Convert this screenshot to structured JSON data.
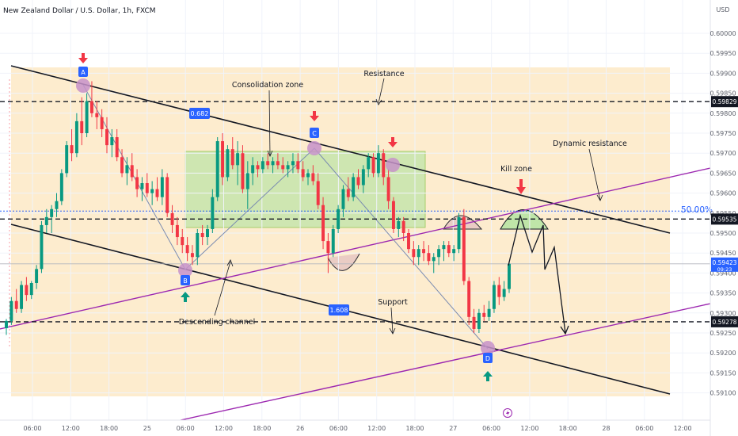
{
  "header": {
    "title": "New Zealand Dollar / U.S. Dollar, 1h, FXCM",
    "currency": "USD"
  },
  "chart_data": {
    "type": "candlestick",
    "ylim": [
      0.591,
      0.6007
    ],
    "y_ticks": [
      "0.60000",
      "0.59950",
      "0.59900",
      "0.59850",
      "0.59800",
      "0.59750",
      "0.59700",
      "0.59650",
      "0.59600",
      "0.59550",
      "0.59500",
      "0.59450",
      "0.59400",
      "0.59350",
      "0.59300",
      "0.59250",
      "0.59200",
      "0.59150",
      "0.59100"
    ],
    "x_ticks": [
      "06:00",
      "12:00",
      "18:00",
      "25",
      "06:00",
      "12:00",
      "18:00",
      "26",
      "06:00",
      "12:00",
      "18:00",
      "27",
      "06:00",
      "12:00",
      "18:00",
      "28",
      "06:00",
      "12:00"
    ],
    "candles": [
      [
        0.59262,
        0.59285,
        0.59245,
        0.5928
      ],
      [
        0.5928,
        0.5934,
        0.5927,
        0.5933
      ],
      [
        0.5933,
        0.5936,
        0.593,
        0.5931
      ],
      [
        0.5931,
        0.5938,
        0.593,
        0.5937
      ],
      [
        0.5937,
        0.5939,
        0.5933,
        0.59345
      ],
      [
        0.59345,
        0.5938,
        0.59335,
        0.59375
      ],
      [
        0.59375,
        0.5942,
        0.5936,
        0.5941
      ],
      [
        0.5941,
        0.5953,
        0.594,
        0.5952
      ],
      [
        0.5952,
        0.5956,
        0.595,
        0.5954
      ],
      [
        0.5954,
        0.5957,
        0.595,
        0.5956
      ],
      [
        0.5956,
        0.596,
        0.5954,
        0.5958
      ],
      [
        0.5958,
        0.5966,
        0.5957,
        0.5965
      ],
      [
        0.5965,
        0.5973,
        0.5964,
        0.5972
      ],
      [
        0.5972,
        0.5976,
        0.5968,
        0.597
      ],
      [
        0.597,
        0.598,
        0.5969,
        0.5978
      ],
      [
        0.5978,
        0.5984,
        0.5972,
        0.5975
      ],
      [
        0.5975,
        0.5985,
        0.5974,
        0.5983
      ],
      [
        0.5983,
        0.5988,
        0.5979,
        0.598
      ],
      [
        0.598,
        0.5983,
        0.5976,
        0.5979
      ],
      [
        0.5979,
        0.5981,
        0.5974,
        0.5976
      ],
      [
        0.5976,
        0.5979,
        0.597,
        0.5972
      ],
      [
        0.5972,
        0.5976,
        0.5969,
        0.5974
      ],
      [
        0.5974,
        0.5976,
        0.5968,
        0.5969
      ],
      [
        0.5969,
        0.5971,
        0.5964,
        0.5965
      ],
      [
        0.5965,
        0.5969,
        0.5962,
        0.5967
      ],
      [
        0.5967,
        0.597,
        0.5963,
        0.5964
      ],
      [
        0.5964,
        0.5966,
        0.5959,
        0.5961
      ],
      [
        0.5961,
        0.5964,
        0.5958,
        0.59625
      ],
      [
        0.59625,
        0.5965,
        0.5959,
        0.596
      ],
      [
        0.596,
        0.5963,
        0.5957,
        0.5961
      ],
      [
        0.5961,
        0.5964,
        0.5958,
        0.5959
      ],
      [
        0.5959,
        0.5966,
        0.5957,
        0.5964
      ],
      [
        0.5964,
        0.5965,
        0.5954,
        0.5955
      ],
      [
        0.5955,
        0.5957,
        0.595,
        0.5952
      ],
      [
        0.5952,
        0.5954,
        0.5947,
        0.5949
      ],
      [
        0.5949,
        0.5951,
        0.5945,
        0.5947
      ],
      [
        0.5947,
        0.5949,
        0.5943,
        0.5945
      ],
      [
        0.5945,
        0.5947,
        0.5942,
        0.5944
      ],
      [
        0.5944,
        0.5951,
        0.5942,
        0.595
      ],
      [
        0.595,
        0.5952,
        0.5947,
        0.5949
      ],
      [
        0.5949,
        0.5952,
        0.5947,
        0.5951
      ],
      [
        0.5951,
        0.5961,
        0.595,
        0.5959
      ],
      [
        0.5959,
        0.5974,
        0.5958,
        0.5973
      ],
      [
        0.5973,
        0.5975,
        0.5962,
        0.5964
      ],
      [
        0.5964,
        0.5972,
        0.5963,
        0.5971
      ],
      [
        0.5971,
        0.5974,
        0.5966,
        0.5967
      ],
      [
        0.5967,
        0.5973,
        0.5962,
        0.597
      ],
      [
        0.597,
        0.5972,
        0.596,
        0.5961
      ],
      [
        0.5961,
        0.5968,
        0.5956,
        0.5965
      ],
      [
        0.5965,
        0.5969,
        0.5962,
        0.5967
      ],
      [
        0.5967,
        0.5968,
        0.5964,
        0.5966
      ],
      [
        0.5966,
        0.5969,
        0.5965,
        0.5968
      ],
      [
        0.5968,
        0.597,
        0.5966,
        0.5967
      ],
      [
        0.5967,
        0.5969,
        0.5965,
        0.5968
      ],
      [
        0.5968,
        0.597,
        0.5966,
        0.5967
      ],
      [
        0.5967,
        0.5969,
        0.5965,
        0.5966
      ],
      [
        0.5966,
        0.5968,
        0.5964,
        0.5967
      ],
      [
        0.5967,
        0.597,
        0.5965,
        0.5968
      ],
      [
        0.5968,
        0.597,
        0.5965,
        0.5966
      ],
      [
        0.5966,
        0.5968,
        0.5963,
        0.5964
      ],
      [
        0.5964,
        0.5966,
        0.5962,
        0.5965
      ],
      [
        0.5965,
        0.5967,
        0.5962,
        0.5963
      ],
      [
        0.5963,
        0.5965,
        0.5956,
        0.5957
      ],
      [
        0.5957,
        0.5959,
        0.5946,
        0.5948
      ],
      [
        0.5948,
        0.595,
        0.594,
        0.5945
      ],
      [
        0.5945,
        0.5952,
        0.5944,
        0.5951
      ],
      [
        0.5951,
        0.5957,
        0.595,
        0.5956
      ],
      [
        0.5956,
        0.5962,
        0.5954,
        0.5961
      ],
      [
        0.5961,
        0.5964,
        0.5958,
        0.5959
      ],
      [
        0.5959,
        0.5965,
        0.5958,
        0.5964
      ],
      [
        0.5964,
        0.5966,
        0.5961,
        0.5962
      ],
      [
        0.5962,
        0.5967,
        0.596,
        0.5966
      ],
      [
        0.5966,
        0.597,
        0.5964,
        0.5969
      ],
      [
        0.5969,
        0.597,
        0.5964,
        0.5965
      ],
      [
        0.5965,
        0.5972,
        0.5964,
        0.597
      ],
      [
        0.597,
        0.5971,
        0.5962,
        0.5964
      ],
      [
        0.5964,
        0.5966,
        0.5956,
        0.5958
      ],
      [
        0.5958,
        0.5959,
        0.595,
        0.5951
      ],
      [
        0.5951,
        0.5954,
        0.5949,
        0.5953
      ],
      [
        0.5953,
        0.5954,
        0.5948,
        0.595
      ],
      [
        0.595,
        0.5951,
        0.5945,
        0.5946
      ],
      [
        0.5946,
        0.5948,
        0.5942,
        0.5944
      ],
      [
        0.5944,
        0.5947,
        0.5942,
        0.5946
      ],
      [
        0.5946,
        0.5948,
        0.5943,
        0.5945
      ],
      [
        0.5945,
        0.5947,
        0.5942,
        0.5943
      ],
      [
        0.5943,
        0.5945,
        0.594,
        0.5944
      ],
      [
        0.5944,
        0.5947,
        0.5942,
        0.5946
      ],
      [
        0.5946,
        0.5948,
        0.5943,
        0.5947
      ],
      [
        0.5947,
        0.5948,
        0.5944,
        0.5945
      ],
      [
        0.5945,
        0.5947,
        0.5943,
        0.5946
      ],
      [
        0.5946,
        0.5955,
        0.5945,
        0.5954
      ],
      [
        0.5954,
        0.5956,
        0.5937,
        0.5938
      ],
      [
        0.5938,
        0.5939,
        0.5927,
        0.5929
      ],
      [
        0.5929,
        0.5931,
        0.5925,
        0.5926
      ],
      [
        0.5926,
        0.5931,
        0.5925,
        0.593
      ],
      [
        0.593,
        0.5932,
        0.5928,
        0.5929
      ],
      [
        0.5929,
        0.5933,
        0.5928,
        0.5931
      ],
      [
        0.5931,
        0.5938,
        0.593,
        0.5937
      ],
      [
        0.5937,
        0.5939,
        0.5932,
        0.5934
      ],
      [
        0.5934,
        0.5938,
        0.5933,
        0.5936
      ],
      [
        0.5936,
        0.5943,
        0.5935,
        0.59423
      ]
    ],
    "candle_x_start": "06:00",
    "bull_color": "#089981",
    "bear_color": "#f23645",
    "levels": [
      {
        "label": "Resistance",
        "value": "0.59829",
        "price": 0.59829
      },
      {
        "label": "",
        "value": "0.59535",
        "price": 0.59535
      },
      {
        "label": "Support",
        "value": "0.59278",
        "price": 0.59278
      }
    ],
    "last_price": {
      "value": "0.59423",
      "countdown": "09:23",
      "price": 0.59423
    },
    "fib_50": {
      "label": "50.00%",
      "price": 0.59555
    },
    "pattern_points": {
      "A": "A",
      "B": "B",
      "C": "C",
      "D": "D"
    },
    "ratios": {
      "ac": "0.682",
      "bd": "1.608"
    },
    "annotations": {
      "consolidation": "Consolidation zone",
      "resistance": "Resistance",
      "dynamic": "Dynamic resistance",
      "kill": "Kill zone",
      "channel": "Descending channel",
      "support": "Support"
    },
    "colors": {
      "channel_fill": "#fde7c2",
      "consolidation_fill": "#b7e4a4",
      "trendline": "#9c27b0",
      "marker": "#c792c9",
      "label_bg": "#2962ff",
      "fib": "#2962ff"
    }
  }
}
